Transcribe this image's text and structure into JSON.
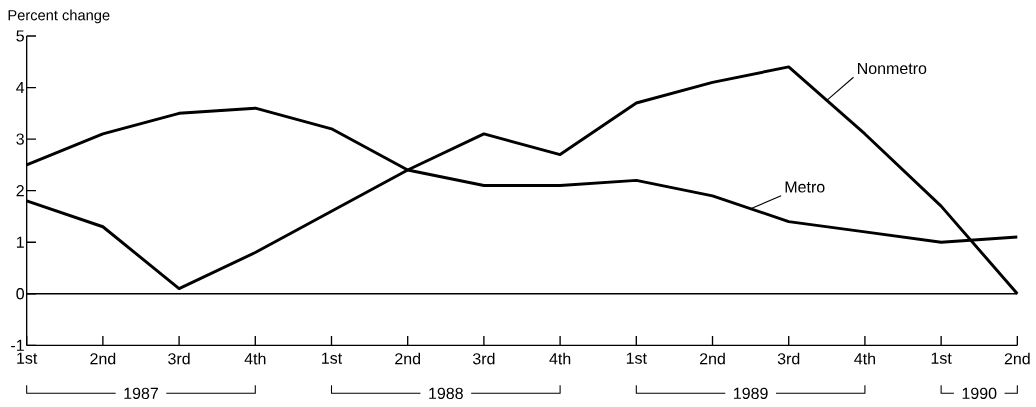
{
  "chart_data": {
    "type": "line",
    "ylabel": "Percent change",
    "categories": [
      "1st",
      "2nd",
      "3rd",
      "4th",
      "1st",
      "2nd",
      "3rd",
      "4th",
      "1st",
      "2nd",
      "3rd",
      "4th",
      "1st",
      "2nd"
    ],
    "series": [
      {
        "name": "Nonmetro",
        "color": "#000000",
        "values": [
          1.8,
          1.3,
          0.1,
          0.8,
          1.6,
          2.4,
          3.1,
          2.7,
          3.7,
          4.1,
          4.4,
          3.1,
          1.7,
          0.0
        ]
      },
      {
        "name": "Metro",
        "color": "#000000",
        "values": [
          2.5,
          3.1,
          3.5,
          3.6,
          3.2,
          2.4,
          2.1,
          2.1,
          2.2,
          1.9,
          1.4,
          1.2,
          1.0,
          1.1
        ]
      }
    ],
    "ylim": [
      -1,
      5
    ],
    "yticks": [
      -1,
      0,
      1,
      2,
      3,
      4,
      5
    ],
    "ref_lines": [
      {
        "axis": "y",
        "value": 0,
        "color": "#000000"
      }
    ],
    "annotations": [
      "1987",
      "1988",
      "1989",
      "1990"
    ],
    "grid": false,
    "marker": "none",
    "line_style": "solid"
  }
}
